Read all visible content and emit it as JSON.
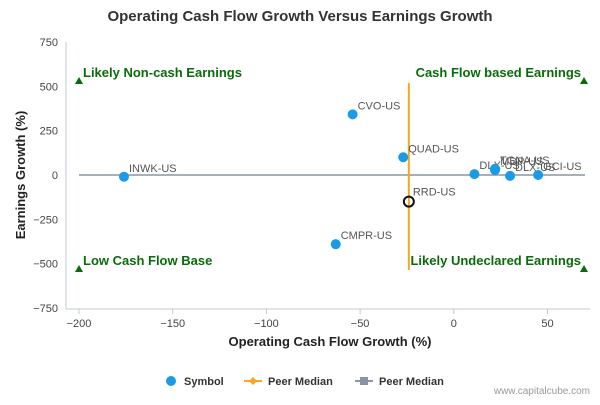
{
  "chart_data": {
    "type": "scatter",
    "title": "Operating Cash Flow Growth Versus Earnings Growth",
    "xlabel": "Operating Cash Flow Growth (%)",
    "ylabel": "Earnings Growth (%)",
    "xlim": [
      -200,
      70
    ],
    "ylim": [
      -750,
      750
    ],
    "xticks": [
      -200,
      -150,
      -100,
      -50,
      0,
      50
    ],
    "xtick_labels": [
      "−200",
      "−150",
      "−100",
      "−50",
      "0",
      "50"
    ],
    "yticks": [
      -750,
      -500,
      -250,
      0,
      250,
      500,
      750
    ],
    "ytick_labels": [
      "−750",
      "−500",
      "−250",
      "0",
      "250",
      "500",
      "750"
    ],
    "grid": false,
    "legend_position": "bottom",
    "points": [
      {
        "label": "INWK-US",
        "x": -176,
        "y": -10
      },
      {
        "label": "CVO-US",
        "x": -54,
        "y": 342
      },
      {
        "label": "QUAD-US",
        "x": -27,
        "y": 100
      },
      {
        "label": "CMPR-US",
        "x": -63,
        "y": -390
      },
      {
        "label": "DLX-US",
        "x": 11,
        "y": 5
      },
      {
        "label": "TGNA-US",
        "x": 22,
        "y": 35
      },
      {
        "label": "MDP-US",
        "x": 22,
        "y": 28
      },
      {
        "label": "DLX-US",
        "x": 30,
        "y": -5
      },
      {
        "label": "GCI-US",
        "x": 45,
        "y": 0
      }
    ],
    "highlight": {
      "label": "RRD-US",
      "x": -24,
      "y": -150
    },
    "peer_median_x": -24,
    "peer_median_y": 0,
    "quadrant_labels": {
      "top_left": "Likely Non-cash Earnings",
      "top_right": "Cash Flow based Earnings",
      "bottom_left": "Low Cash Flow Base",
      "bottom_right": "Likely Undeclared Earnings"
    },
    "legend": [
      "Symbol",
      "Peer Median",
      "Peer Median"
    ],
    "colors": {
      "points": "#1a9be6",
      "highlight_stroke": "#111111",
      "peer_median_x": "#f5a623",
      "peer_median_y": "#8a94a6",
      "quadrant": "#0a6b0a",
      "axis": "#c0c8d8"
    },
    "credit": "www.capitalcube.com"
  }
}
